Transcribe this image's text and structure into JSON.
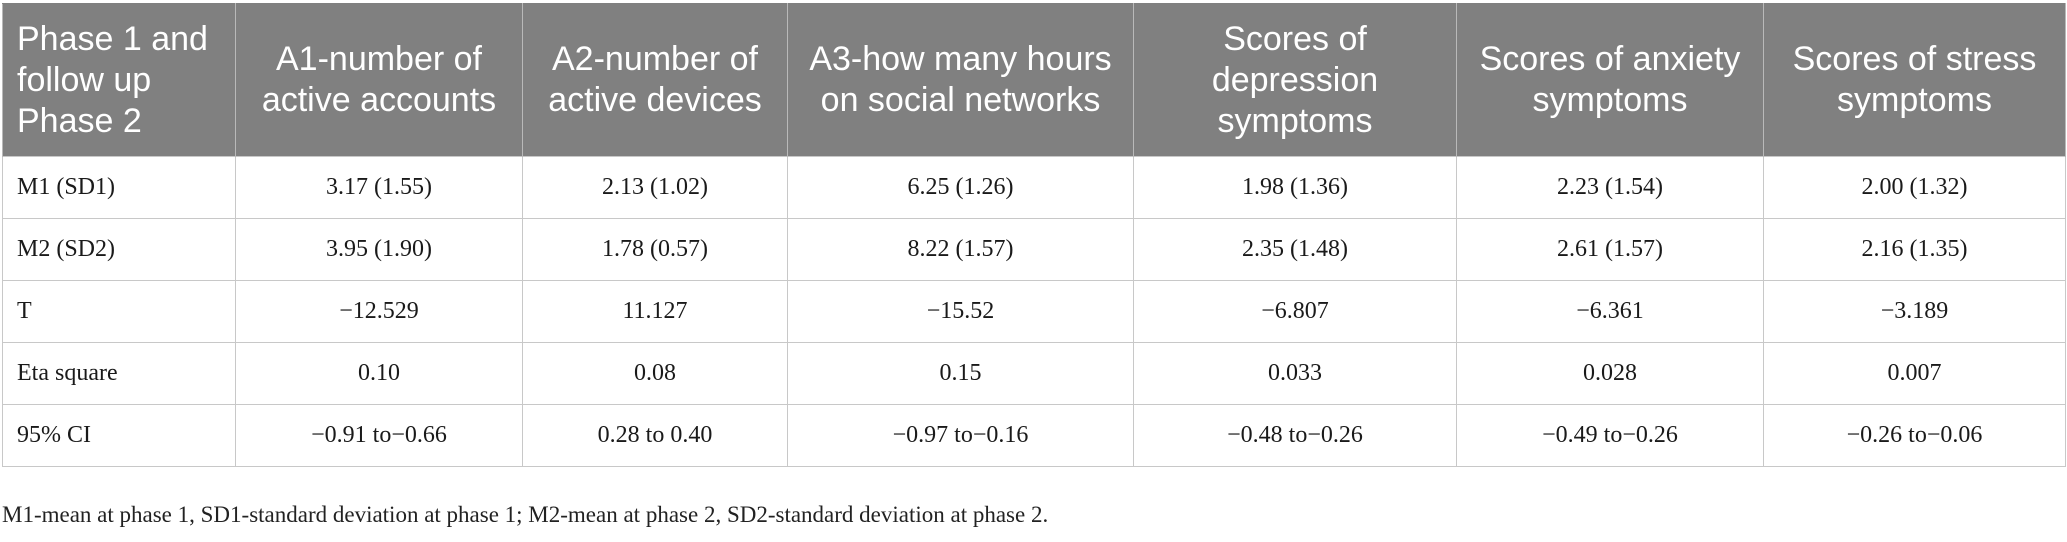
{
  "table": {
    "headers": [
      "Phase 1 and follow up Phase 2",
      "A1-number of active accounts",
      "A2-number of active devices",
      "A3-how many hours on social networks",
      "Scores of depression symptoms",
      "Scores of anxiety symptoms",
      "Scores of stress symptoms"
    ],
    "rows": [
      [
        "M1 (SD1)",
        "3.17 (1.55)",
        "2.13 (1.02)",
        "6.25 (1.26)",
        "1.98 (1.36)",
        "2.23 (1.54)",
        "2.00 (1.32)"
      ],
      [
        "M2 (SD2)",
        "3.95 (1.90)",
        "1.78 (0.57)",
        "8.22 (1.57)",
        "2.35 (1.48)",
        "2.61 (1.57)",
        "2.16 (1.35)"
      ],
      [
        "T",
        "−12.529",
        "11.127",
        "−15.52",
        "−6.807",
        "−6.361",
        "−3.189"
      ],
      [
        "Eta square",
        "0.10",
        "0.08",
        "0.15",
        "0.033",
        "0.028",
        "0.007"
      ],
      [
        "95% CI",
        "−0.91 to−0.66",
        "0.28 to 0.40",
        "−0.97 to−0.16",
        "−0.48 to−0.26",
        "−0.49 to−0.26",
        "−0.26 to−0.06"
      ]
    ]
  },
  "footnote": "M1-mean at phase 1, SD1-standard deviation at phase 1; M2-mean at phase 2, SD2-standard deviation at phase 2."
}
